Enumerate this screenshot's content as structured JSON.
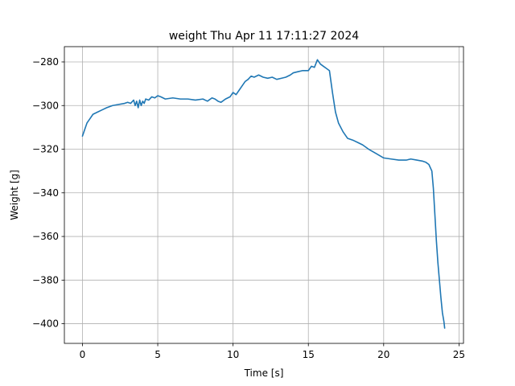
{
  "chart_data": {
    "type": "line",
    "title": "weight Thu Apr 11 17:11:27 2024",
    "xlabel": "Time [s]",
    "ylabel": "Weight [g]",
    "xlim": [
      -1.2,
      25.3
    ],
    "ylim": [
      -409,
      -273
    ],
    "xticks": [
      0,
      5,
      10,
      15,
      20,
      25
    ],
    "yticks": [
      -280,
      -300,
      -320,
      -340,
      -360,
      -380,
      -400
    ],
    "grid": true,
    "line_color": "#1f77b4",
    "series": [
      {
        "x": [
          0,
          0.1,
          0.2,
          0.3,
          0.5,
          0.7,
          1.0,
          1.3,
          1.6,
          2.0,
          2.4,
          2.8,
          3.0,
          3.2,
          3.4,
          3.5,
          3.6,
          3.7,
          3.8,
          3.9,
          4.0,
          4.1,
          4.2,
          4.4,
          4.6,
          4.8,
          5.0,
          5.2,
          5.5,
          6.0,
          6.5,
          7.0,
          7.5,
          8.0,
          8.3,
          8.6,
          8.8,
          9.0,
          9.2,
          9.5,
          9.8,
          10.0,
          10.2,
          10.4,
          10.6,
          10.8,
          11.0,
          11.2,
          11.4,
          11.7,
          12.0,
          12.3,
          12.6,
          12.9,
          13.2,
          13.5,
          13.8,
          14.0,
          14.3,
          14.6,
          15.0,
          15.2,
          15.4,
          15.6,
          15.8,
          16.0,
          16.2,
          16.4,
          16.6,
          16.8,
          17.0,
          17.3,
          17.6,
          18.0,
          18.3,
          18.6,
          19.0,
          19.5,
          20.0,
          20.5,
          21.0,
          21.5,
          21.8,
          22.2,
          22.6,
          22.8,
          23.0,
          23.2,
          23.3,
          23.4,
          23.5,
          23.6,
          23.7,
          23.8,
          23.9,
          24.0,
          24.05
        ],
        "y": [
          -314,
          -312,
          -310,
          -308,
          -306,
          -304,
          -303,
          -302,
          -301,
          -300,
          -299.5,
          -299,
          -298.5,
          -299,
          -297.5,
          -300,
          -298,
          -301,
          -297.5,
          -300,
          -298,
          -299,
          -297,
          -297.5,
          -296,
          -296.5,
          -295.5,
          -296,
          -297,
          -296.5,
          -297,
          -297,
          -297.5,
          -297,
          -298,
          -296.5,
          -297,
          -298,
          -298.5,
          -297,
          -296,
          -294,
          -295,
          -293,
          -291,
          -289,
          -288,
          -286.5,
          -287,
          -286,
          -287,
          -287.5,
          -287,
          -288,
          -287.5,
          -287,
          -286,
          -285,
          -284.5,
          -284,
          -284,
          -282,
          -282.5,
          -279,
          -281,
          -282,
          -283,
          -284,
          -294,
          -303,
          -308,
          -312,
          -315,
          -316,
          -317,
          -318,
          -320,
          -322,
          -324,
          -324.5,
          -325,
          -325,
          -324.5,
          -325,
          -325.5,
          -326,
          -327,
          -330,
          -338,
          -350,
          -362,
          -372,
          -380,
          -388,
          -395,
          -399,
          -402
        ]
      }
    ]
  }
}
